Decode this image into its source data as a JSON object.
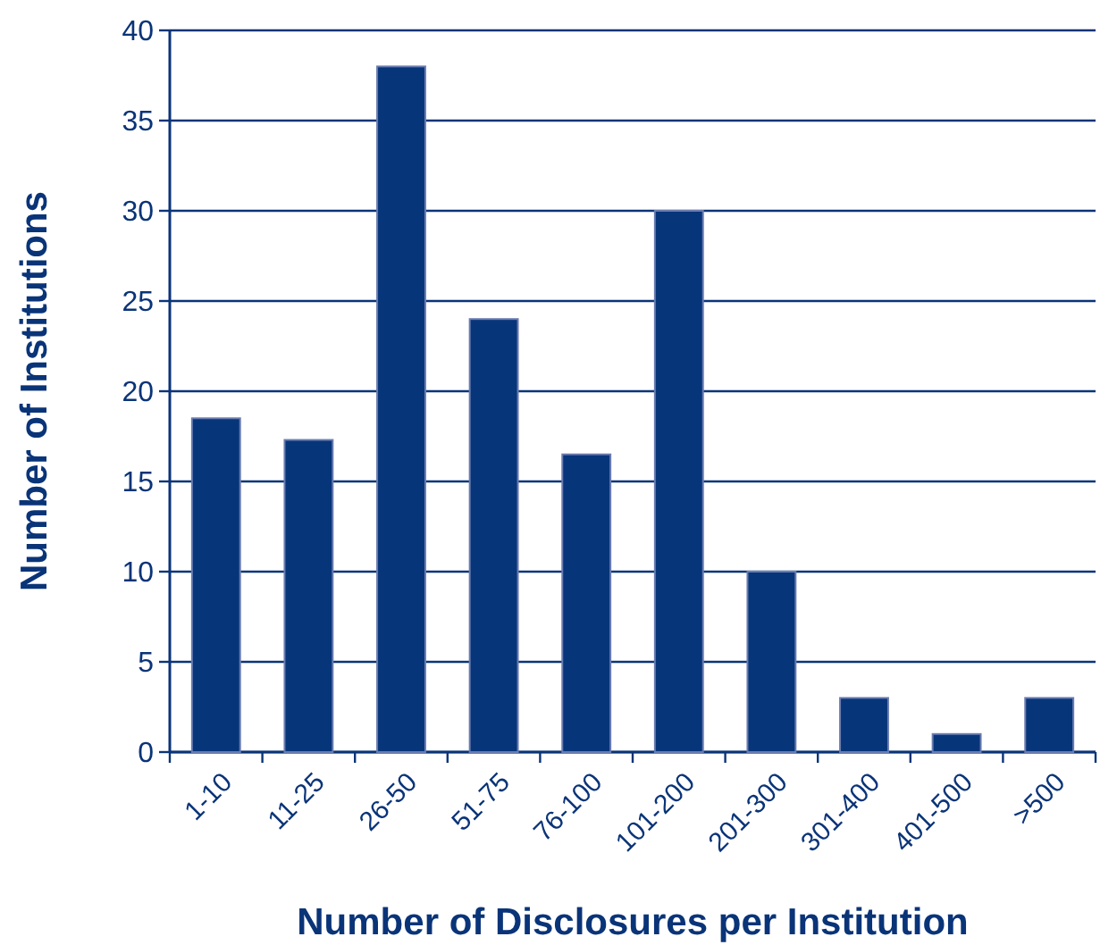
{
  "chart_data": {
    "type": "bar",
    "xlabel": "Number of Disclosures per Institution",
    "ylabel": "Number of Institutions",
    "categories": [
      "1-10",
      "11-25",
      "26-50",
      "51-75",
      "76-100",
      "101-200",
      "201-300",
      "301-400",
      "401-500",
      ">500"
    ],
    "values": [
      18.5,
      17.3,
      38,
      24,
      16.5,
      30,
      10,
      3,
      1,
      3
    ],
    "color": "#07357a",
    "ylim": [
      0,
      40
    ],
    "yticks": [
      0,
      5,
      10,
      15,
      20,
      25,
      30,
      35,
      40
    ],
    "grid": "y"
  }
}
